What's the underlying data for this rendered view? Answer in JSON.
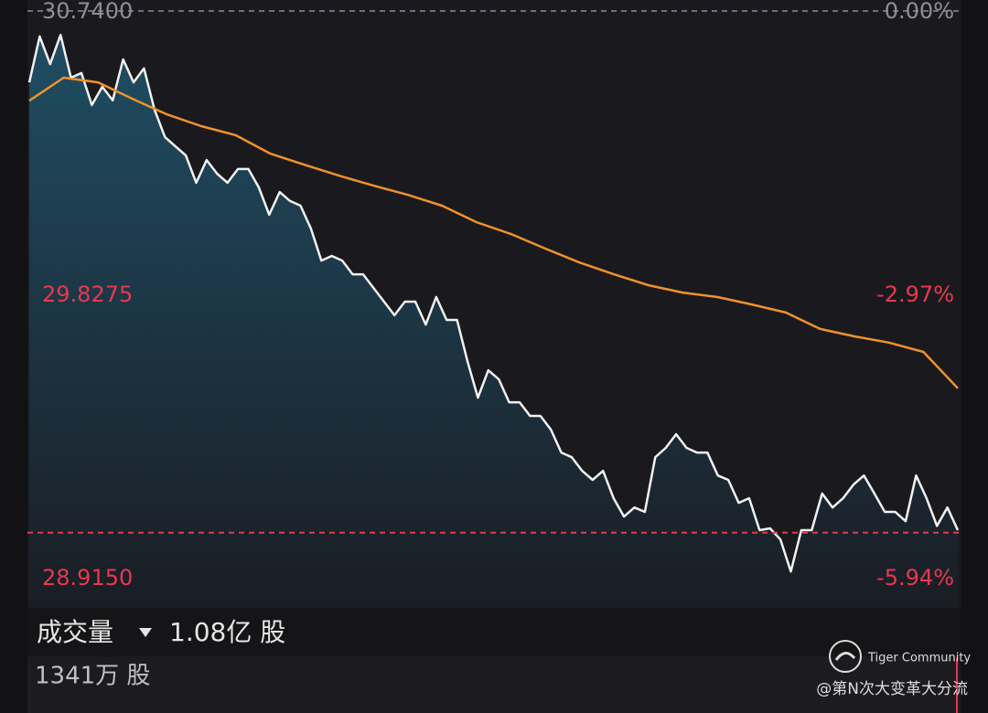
{
  "chart_data": {
    "type": "line",
    "ylim": [
      28.915,
      30.74
    ],
    "yticks": [
      {
        "value": 30.74,
        "label": "30.7400"
      },
      {
        "value": 29.8275,
        "label": "29.8275"
      },
      {
        "value": 28.915,
        "label": "28.9150"
      }
    ],
    "y2lim": [
      -5.94,
      0
    ],
    "y2ticks": [
      {
        "value": 0,
        "label": "0.00%"
      },
      {
        "value": -2.97,
        "label": "-2.97%"
      },
      {
        "value": -5.94,
        "label": "-5.94%"
      }
    ],
    "grid": false,
    "reference_line": {
      "value": 29.06,
      "color": "#e8384f"
    },
    "series": [
      {
        "color": "#f2f2f2",
        "values": [
          30.51,
          30.658,
          30.569,
          30.663,
          30.525,
          30.54,
          30.437,
          30.496,
          30.452,
          30.584,
          30.51,
          30.555,
          30.422,
          30.334,
          30.304,
          30.275,
          30.187,
          30.26,
          30.216,
          30.187,
          30.231,
          30.231,
          30.172,
          30.084,
          30.157,
          30.128,
          30.113,
          30.039,
          29.936,
          29.951,
          29.936,
          29.892,
          29.892,
          29.848,
          29.804,
          29.76,
          29.804,
          29.804,
          29.73,
          29.819,
          29.745,
          29.745,
          29.612,
          29.495,
          29.583,
          29.554,
          29.48,
          29.48,
          29.436,
          29.436,
          29.392,
          29.318,
          29.303,
          29.259,
          29.23,
          29.259,
          29.171,
          29.112,
          29.141,
          29.127,
          29.303,
          29.333,
          29.377,
          29.333,
          29.318,
          29.318,
          29.244,
          29.23,
          29.156,
          29.171,
          29.068,
          29.074,
          29.038,
          28.935,
          29.068,
          29.068,
          29.186,
          29.141,
          29.171,
          29.215,
          29.244,
          29.186,
          29.127,
          29.127,
          29.097,
          29.244,
          29.171,
          29.082,
          29.141,
          29.068
        ]
      },
      {
        "color": "#f0922b",
        "values": [
          30.451,
          30.525,
          30.51,
          30.457,
          30.407,
          30.369,
          30.34,
          30.281,
          30.245,
          30.21,
          30.178,
          30.148,
          30.113,
          30.06,
          30.022,
          29.975,
          29.93,
          29.892,
          29.857,
          29.833,
          29.819,
          29.795,
          29.769,
          29.716,
          29.692,
          29.672,
          29.642,
          29.525
        ]
      }
    ]
  },
  "volume": {
    "label": "成交量",
    "total": "1.08亿 股",
    "current": "1341万 股"
  },
  "watermark": {
    "brand": "Tiger Community",
    "author": "@第N次大变革大分流"
  }
}
